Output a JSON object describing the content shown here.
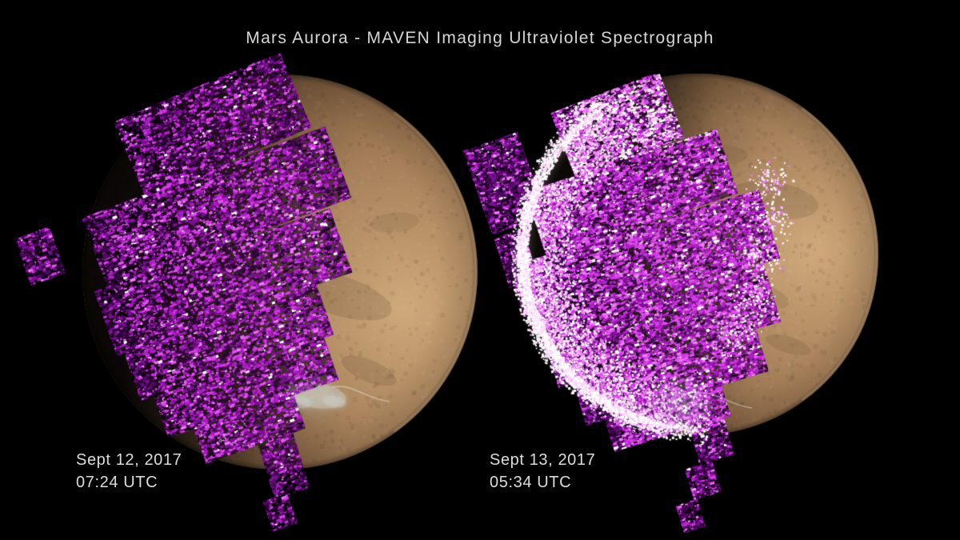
{
  "title": "Mars Aurora - MAVEN Imaging Ultraviolet Spectrograph",
  "panels": [
    {
      "name": "left",
      "date": "Sept 12, 2017",
      "time": "07:24 UTC",
      "description": "Mars disk with diffuse magenta ultraviolet aurora speckle swaths before the solar event"
    },
    {
      "name": "right",
      "date": "Sept 13, 2017",
      "time": "05:34 UTC",
      "description": "Mars disk with greatly brightened aurora and white glowing limb arc during the solar event"
    }
  ],
  "colors": {
    "background": "#000000",
    "title_text": "#d6d6d6",
    "label_text": "#dcdcdc",
    "mars_light": "#cfa97a",
    "mars_mid": "#8f6b48",
    "mars_shadow": "#3a2817",
    "mars_dark": "#1c1209",
    "aurora_deep": "#26042e",
    "aurora_dark": "#30053c",
    "aurora_purple": "#7b0f92",
    "aurora_magenta": "#b01cc8",
    "aurora_bright": "#d93aec",
    "aurora_mid": "#df55ea",
    "aurora_pink": "#f07cf8",
    "aurora_pale": "#ffd2fb",
    "aurora_white": "#ffffff",
    "polar_cap": "#cdd5d1"
  }
}
